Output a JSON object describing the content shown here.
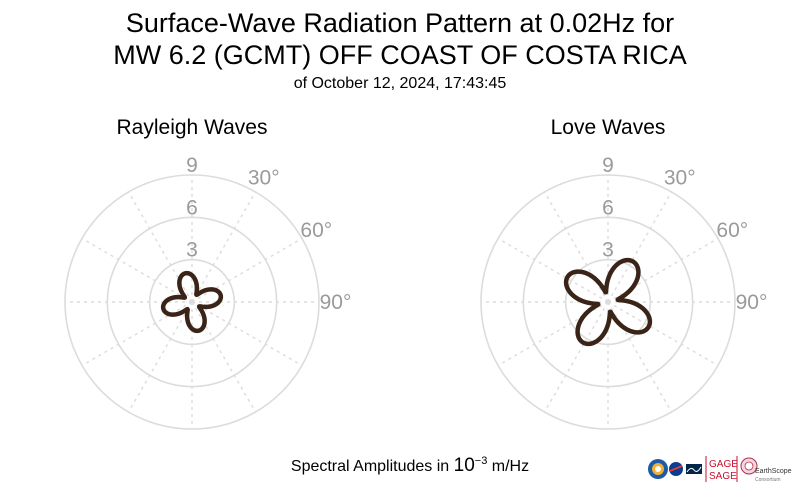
{
  "title": {
    "line1": "Surface-Wave Radiation Pattern at 0.02Hz for",
    "line2": "MW 6.2 (GCMT) OFF COAST OF COSTA RICA",
    "line3": "of October 12, 2024, 17:43:45"
  },
  "footer": {
    "prefix": "Spectral Amplitudes in ",
    "base": "10",
    "exponent": "−3",
    "unit": " m/Hz"
  },
  "logos": {
    "gage": "GAGE",
    "sage": "SAGE",
    "earthscope": "EarthScope",
    "consortium": "Consortium"
  },
  "colors": {
    "pattern": "#3a2418",
    "grid": "#dcdcdc",
    "tick_label": "#9a9a9a"
  },
  "chart_data": [
    {
      "type": "polar",
      "title": "Rayleigh Waves",
      "rlim": [
        0,
        9
      ],
      "radial_ticks": [
        3,
        6,
        9
      ],
      "angle_ticks": [
        0,
        30,
        60,
        90,
        120,
        150,
        180,
        210,
        240,
        270,
        300,
        330
      ],
      "angle_tick_labels": [
        "30°",
        "60°",
        "90°"
      ],
      "angle_direction": "clockwise",
      "zero_location": "north",
      "pattern": {
        "shape": "four-lobed",
        "a": 2.0,
        "b": 0.6,
        "phase_deg": 32,
        "min": 0.1
      },
      "max_amplitude": 2.0,
      "color": "#3a2418"
    },
    {
      "type": "polar",
      "title": "Love Waves",
      "rlim": [
        0,
        9
      ],
      "radial_ticks": [
        3,
        6,
        9
      ],
      "angle_ticks": [
        0,
        30,
        60,
        90,
        120,
        150,
        180,
        210,
        240,
        270,
        300,
        330
      ],
      "angle_tick_labels": [
        "30°",
        "60°",
        "90°"
      ],
      "angle_direction": "clockwise",
      "zero_location": "north",
      "pattern": {
        "shape": "four-lobed",
        "a": 3.3,
        "b": 0.7,
        "phase_deg": -13,
        "min": 0.2
      },
      "max_amplitude": 3.3,
      "color": "#3a2418"
    }
  ]
}
